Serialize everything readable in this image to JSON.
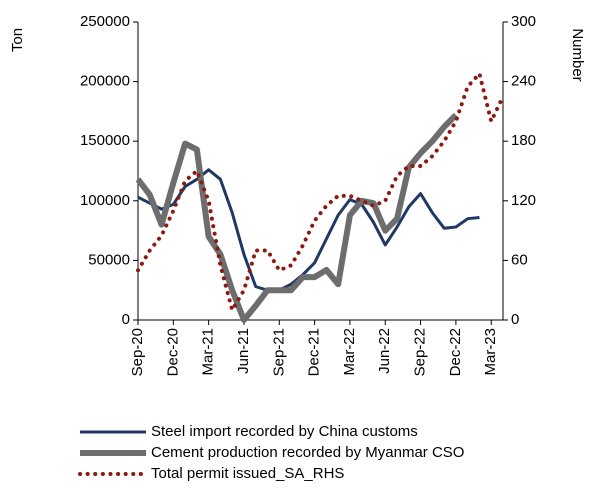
{
  "chart_data": {
    "type": "line",
    "y_label": "Ton",
    "y2_label": "Number",
    "categories": [
      "Sep-20",
      null,
      null,
      "Dec-20",
      null,
      null,
      "Mar-21",
      null,
      null,
      "Jun-21",
      null,
      null,
      "Sep-21",
      null,
      null,
      "Dec-21",
      null,
      null,
      "Mar-22",
      null,
      null,
      "Jun-22",
      null,
      null,
      "Sep-22",
      null,
      null,
      "Dec-22",
      null,
      null,
      "Mar-23",
      null
    ],
    "series": [
      {
        "name": "Steel import recorded by China customs",
        "color": "#203864",
        "style": "solid",
        "axis": "y",
        "values": [
          103000,
          98000,
          93000,
          97000,
          112000,
          118000,
          126000,
          118000,
          90000,
          55000,
          28000,
          25000,
          25000,
          30000,
          38000,
          48000,
          68000,
          88000,
          101000,
          97000,
          82000,
          63000,
          78000,
          95000,
          106000,
          90000,
          77000,
          78000,
          85000,
          86000,
          null,
          null
        ]
      },
      {
        "name": "Cement production recorded by Myanmar CSO",
        "color": "#6d6d6d",
        "style": "thick",
        "axis": "y",
        "values": [
          118000,
          105000,
          80000,
          115000,
          148000,
          143000,
          70000,
          55000,
          25000,
          0,
          12000,
          25000,
          25000,
          25000,
          36000,
          36000,
          42000,
          30000,
          88000,
          100000,
          98000,
          75000,
          85000,
          128000,
          140000,
          150000,
          162000,
          172000,
          null,
          null,
          null,
          null
        ]
      },
      {
        "name": "Total permit issued_SA_RHS",
        "color": "#8b1a10",
        "style": "dotted",
        "axis": "y2",
        "values": [
          50,
          70,
          85,
          110,
          140,
          150,
          120,
          55,
          10,
          30,
          70,
          70,
          50,
          55,
          75,
          100,
          115,
          125,
          125,
          120,
          115,
          120,
          145,
          155,
          155,
          165,
          180,
          200,
          235,
          248,
          200,
          225
        ]
      }
    ],
    "ylim": [
      0,
      250000
    ],
    "yticks": [
      0,
      50000,
      100000,
      150000,
      200000,
      250000
    ],
    "y2lim": [
      0,
      300
    ],
    "y2ticks": [
      0,
      60,
      120,
      180,
      240,
      300
    ]
  }
}
